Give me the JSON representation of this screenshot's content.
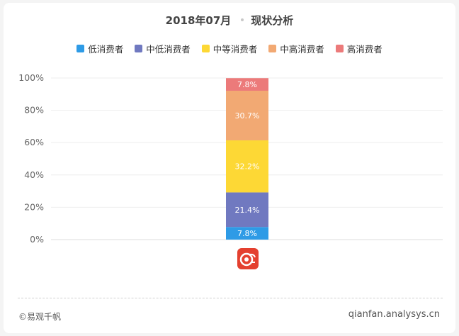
{
  "title": {
    "date": "2018年07月",
    "subtitle": "现状分析"
  },
  "chart_data": {
    "type": "bar",
    "stacked": true,
    "categories": [
      ""
    ],
    "ylim": [
      0,
      100
    ],
    "yticks": [
      "0%",
      "20%",
      "40%",
      "60%",
      "80%",
      "100%"
    ],
    "legend_position": "top-center",
    "grid": true,
    "series": [
      {
        "name": "低消费者",
        "values": [
          7.8
        ],
        "label": "7.8%",
        "color": "#2e9be6"
      },
      {
        "name": "中低消费者",
        "values": [
          21.4
        ],
        "label": "21.4%",
        "color": "#7079c0"
      },
      {
        "name": "中等消费者",
        "values": [
          32.2
        ],
        "label": "32.2%",
        "color": "#fdd835"
      },
      {
        "name": "中高消费者",
        "values": [
          30.7
        ],
        "label": "30.7%",
        "color": "#f2a973"
      },
      {
        "name": "高消费者",
        "values": [
          7.8
        ],
        "label": "7.8%",
        "color": "#ec7a7a"
      }
    ]
  },
  "footer": {
    "copyright": "©易观千帆",
    "website": "qianfan.analysys.cn"
  },
  "icons": {
    "app_logo": "app-logo-icon"
  }
}
